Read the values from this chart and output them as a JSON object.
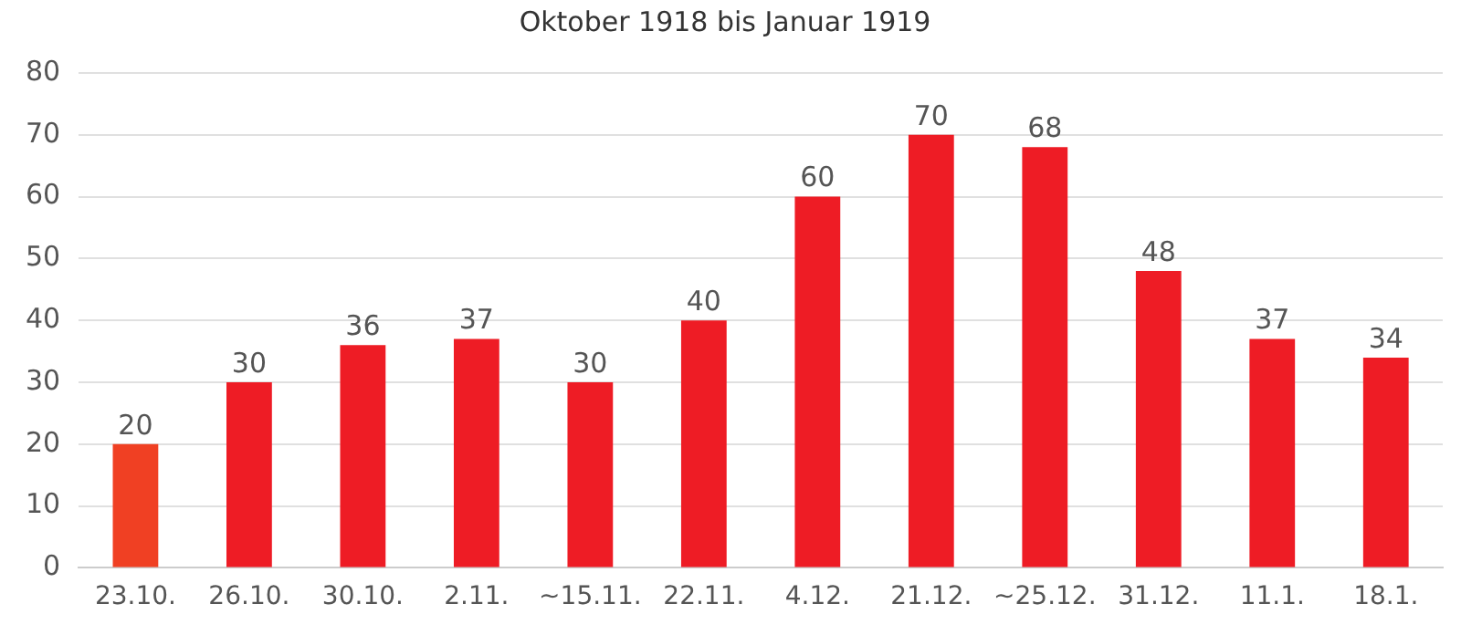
{
  "chart_data": {
    "type": "bar",
    "title": "Oktober 1918 bis Januar 1919",
    "categories": [
      "23.10.",
      "26.10.",
      "30.10.",
      "2.11.",
      "~15.11.",
      "22.11.",
      "4.12.",
      "21.12.",
      "~25.12.",
      "31.12.",
      "11.1.",
      "18.1."
    ],
    "values": [
      20,
      30,
      36,
      37,
      30,
      40,
      60,
      70,
      68,
      48,
      37,
      34
    ],
    "colors": [
      "#f04023",
      "#ee1c25",
      "#ee1c25",
      "#ee1c25",
      "#ee1c25",
      "#ee1c25",
      "#ee1c25",
      "#ee1c25",
      "#ee1c25",
      "#ee1c25",
      "#ee1c25",
      "#ee1c25"
    ],
    "ylim": [
      0,
      80
    ],
    "yticks": [
      0,
      10,
      20,
      30,
      40,
      50,
      60,
      70,
      80
    ],
    "grid": "y",
    "data_labels": true
  }
}
